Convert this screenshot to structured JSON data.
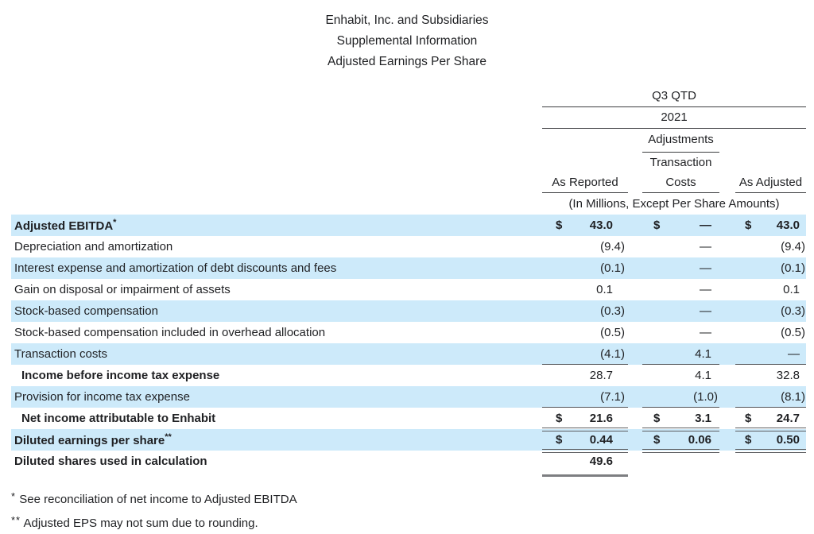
{
  "title": {
    "line1": "Enhabit, Inc. and Subsidiaries",
    "line2": "Supplemental Information",
    "line3": "Adjusted Earnings Per Share"
  },
  "header": {
    "period": "Q3 QTD",
    "year": "2021",
    "adjustments": "Adjustments",
    "col1": "As Reported",
    "col2_line1": "Transaction",
    "col2_line2": "Costs",
    "col3": "As Adjusted",
    "units_note": "(In Millions, Except Per Share Amounts)"
  },
  "table": {
    "rows": [
      {
        "label": "Adjusted EBITDA",
        "sup": "*",
        "c1d": "$",
        "c1": "43.0",
        "c2d": "$",
        "c2": "—",
        "c3d": "$",
        "c3": "43.0"
      },
      {
        "label": "Depreciation and amortization",
        "c1": "(9.4)",
        "c2": "—",
        "c3": "(9.4)"
      },
      {
        "label": "Interest expense and amortization of debt discounts and fees",
        "c1": "(0.1)",
        "c2": "—",
        "c3": "(0.1)"
      },
      {
        "label": "Gain on disposal or impairment of assets",
        "c1": "0.1",
        "c2": "—",
        "c3": "0.1"
      },
      {
        "label": "Stock-based compensation",
        "c1": "(0.3)",
        "c2": "—",
        "c3": "(0.3)"
      },
      {
        "label": "Stock-based compensation included in overhead allocation",
        "c1": "(0.5)",
        "c2": "—",
        "c3": "(0.5)"
      },
      {
        "label": "Transaction costs",
        "c1": "(4.1)",
        "c2": "4.1",
        "c3": "—"
      },
      {
        "label": "Income before income tax expense",
        "c1": "28.7",
        "c2": "4.1",
        "c3": "32.8"
      },
      {
        "label": "Provision for income tax expense",
        "c1": "(7.1)",
        "c2": "(1.0)",
        "c3": "(8.1)"
      },
      {
        "label": "Net income attributable to Enhabit",
        "c1d": "$",
        "c1": "21.6",
        "c2d": "$",
        "c2": "3.1",
        "c3d": "$",
        "c3": "24.7"
      },
      {
        "label": "Diluted earnings per share",
        "sup": "**",
        "c1d": "$",
        "c1": "0.44",
        "c2d": "$",
        "c2": "0.06",
        "c3d": "$",
        "c3": "0.50"
      },
      {
        "label": "Diluted shares used in calculation",
        "c1": "49.6"
      }
    ]
  },
  "footnotes": [
    {
      "marker": "*",
      "text": "See reconciliation of net income to Adjusted EBITDA"
    },
    {
      "marker": "**",
      "text": "Adjusted EPS may not sum due to rounding."
    }
  ],
  "colors": {
    "row_highlight": "#cdeafa",
    "text": "#1f2023",
    "header_line": "#3c3d40",
    "sum_line": "#515357",
    "thick_line": "#7d7e81"
  }
}
